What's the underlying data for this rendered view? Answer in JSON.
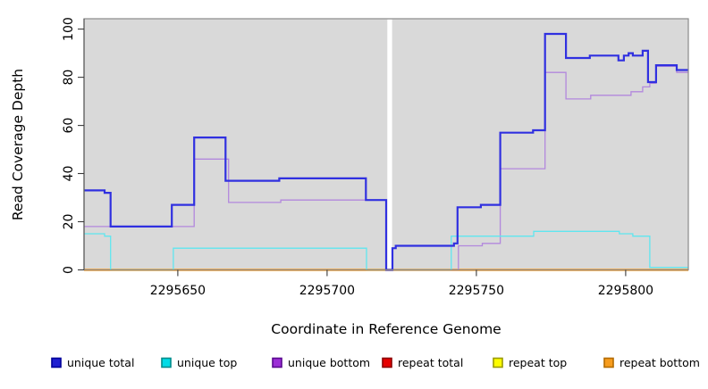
{
  "chart_data": {
    "type": "line",
    "subtype": "step-coverage",
    "xlabel": "Coordinate in Reference Genome",
    "ylabel": "Read Coverage Depth",
    "xlim": [
      2295618.6,
      2295821.0
    ],
    "ylim": [
      0,
      104.3
    ],
    "grid": false,
    "plot_background": "#d9d9d9",
    "masked_region": {
      "x_start": 2295720.2,
      "x_end": 2295721.8
    },
    "x_ticks": [
      {
        "value": 2295650,
        "label": "2295650"
      },
      {
        "value": 2295700,
        "label": "2295700"
      },
      {
        "value": 2295750,
        "label": "2295750"
      },
      {
        "value": 2295800,
        "label": "2295800"
      }
    ],
    "y_ticks": [
      {
        "value": 0,
        "label": "0"
      },
      {
        "value": 20,
        "label": "20"
      },
      {
        "value": 40,
        "label": "40"
      },
      {
        "value": 60,
        "label": "60"
      },
      {
        "value": 80,
        "label": "80"
      },
      {
        "value": 100,
        "label": "100"
      }
    ],
    "series": [
      {
        "id": "unique-total",
        "label": "unique total",
        "color": "#3030e0",
        "line_width": 2.2,
        "z": 6,
        "points": [
          [
            2295618.6,
            33
          ],
          [
            2295625.5,
            32
          ],
          [
            2295627.5,
            18
          ],
          [
            2295648.0,
            27
          ],
          [
            2295655.5,
            55
          ],
          [
            2295666.0,
            37
          ],
          [
            2295684.0,
            38
          ],
          [
            2295713.0,
            29
          ],
          [
            2295719.8,
            0
          ],
          [
            2295721.9,
            9
          ],
          [
            2295723.0,
            10
          ],
          [
            2295742.5,
            11
          ],
          [
            2295743.7,
            26
          ],
          [
            2295751.5,
            27
          ],
          [
            2295758.0,
            57
          ],
          [
            2295769.0,
            58
          ],
          [
            2295773.0,
            98
          ],
          [
            2295780.0,
            88
          ],
          [
            2295788.0,
            89
          ],
          [
            2295797.6,
            87
          ],
          [
            2295799.4,
            89
          ],
          [
            2295801.0,
            90
          ],
          [
            2295802.4,
            89
          ],
          [
            2295805.7,
            91
          ],
          [
            2295807.5,
            78
          ],
          [
            2295810.2,
            85
          ],
          [
            2295817.1,
            83
          ],
          [
            2295821.0,
            83
          ]
        ]
      },
      {
        "id": "unique-top",
        "label": "unique top",
        "color": "#5fe6ef",
        "line_width": 1.3,
        "z": 5,
        "points": [
          [
            2295618.6,
            15
          ],
          [
            2295625.5,
            14
          ],
          [
            2295627.5,
            0
          ],
          [
            2295648.5,
            9
          ],
          [
            2295713.2,
            0
          ],
          [
            2295741.6,
            14
          ],
          [
            2295769.2,
            16
          ],
          [
            2295797.9,
            15
          ],
          [
            2295802.4,
            14
          ],
          [
            2295808.1,
            1
          ],
          [
            2295821.0,
            1
          ]
        ]
      },
      {
        "id": "unique-bottom",
        "label": "unique bottom",
        "color": "#b288dd",
        "line_width": 1.3,
        "z": 4,
        "points": [
          [
            2295618.6,
            18
          ],
          [
            2295655.5,
            46
          ],
          [
            2295667.0,
            28
          ],
          [
            2295684.5,
            29
          ],
          [
            2295719.8,
            0
          ],
          [
            2295744.0,
            10
          ],
          [
            2295752.0,
            11
          ],
          [
            2295758.0,
            42
          ],
          [
            2295773.0,
            82
          ],
          [
            2295780.0,
            71
          ],
          [
            2295788.3,
            72.5
          ],
          [
            2295801.8,
            74
          ],
          [
            2295805.7,
            76
          ],
          [
            2295808.1,
            77.5
          ],
          [
            2295810.2,
            84.5
          ],
          [
            2295817.1,
            82
          ],
          [
            2295821.0,
            82
          ]
        ]
      },
      {
        "id": "repeat-total",
        "label": "repeat total",
        "color": "#e00000",
        "line_width": 1.5,
        "z": 1,
        "points": [
          [
            2295618.6,
            0
          ],
          [
            2295821.0,
            0
          ]
        ]
      },
      {
        "id": "repeat-top",
        "label": "repeat top",
        "color": "#f5f500",
        "line_width": 1.5,
        "z": 2,
        "points": [
          [
            2295618.6,
            0
          ],
          [
            2295821.0,
            0
          ]
        ]
      },
      {
        "id": "repeat-bottom",
        "label": "repeat bottom",
        "color": "#ff9d1e",
        "line_width": 2.4,
        "z": 3,
        "points": [
          [
            2295618.6,
            0
          ],
          [
            2295821.0,
            0
          ]
        ]
      }
    ]
  },
  "legend": {
    "items": [
      {
        "label": "unique total",
        "fill": "#1f1fd1",
        "border": "#000099"
      },
      {
        "label": "unique top",
        "fill": "#00dbe6",
        "border": "#008b8b"
      },
      {
        "label": "unique bottom",
        "fill": "#9c2ed6",
        "border": "#5a0a8f"
      },
      {
        "label": "repeat total",
        "fill": "#e60000",
        "border": "#8b0000"
      },
      {
        "label": "repeat top",
        "fill": "#fdfd00",
        "border": "#9a9a00"
      },
      {
        "label": "repeat bottom",
        "fill": "#f79c1d",
        "border": "#b36b00"
      }
    ]
  },
  "colors": {
    "figure_background": "#ffffff",
    "plot_background": "#d9d9d9",
    "frame": "#8a8a8a",
    "axis_line": "#5a5a5a",
    "tick": "#3a3a3a",
    "text": "#000000",
    "masked_region": "#ffffff"
  }
}
